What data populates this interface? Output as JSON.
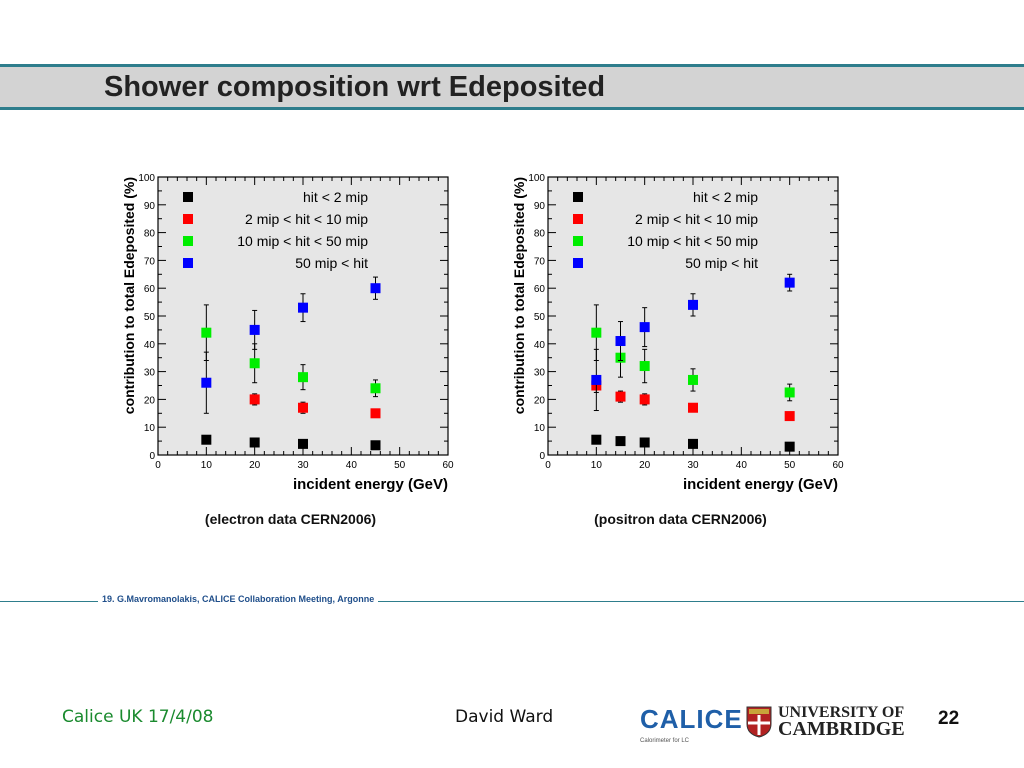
{
  "slide": {
    "title": "Shower composition wrt Edeposited",
    "credit": "19. G.Mavromanolakis, CALICE Collaboration Meeting, Argonne",
    "footer_left": "Calice UK 17/4/08",
    "footer_center": "David Ward",
    "page_number": "22",
    "calice_logo_text": "CALICE",
    "calice_logo_sub": "Calorimeter for LC",
    "university_line1": "UNIVERSITY OF",
    "university_line2": "CAMBRIDGE"
  },
  "colors": {
    "title_rule": "#2e7d8c",
    "series": [
      "#000000",
      "#ff0000",
      "#00ee00",
      "#0000ff"
    ]
  },
  "chart_data": [
    {
      "type": "scatter",
      "caption": "(electron data CERN2006)",
      "xlabel": "incident energy (GeV)",
      "ylabel": "contribution to total Edeposited (%)",
      "xlim": [
        0,
        60
      ],
      "ylim": [
        0,
        100
      ],
      "xticks": [
        0,
        10,
        20,
        30,
        40,
        50,
        60
      ],
      "yticks": [
        0,
        10,
        20,
        30,
        40,
        50,
        60,
        70,
        80,
        90,
        100
      ],
      "legend_position": "top-left",
      "series": [
        {
          "name": "hit <   2 mip",
          "x": [
            10,
            20,
            30,
            45
          ],
          "y": [
            5.5,
            4.5,
            4,
            3.5
          ],
          "err": [
            1,
            1,
            1,
            1
          ]
        },
        {
          "name": "2 mip < hit < 10 mip",
          "x": [
            20,
            30,
            45
          ],
          "y": [
            20,
            17,
            15
          ],
          "err": [
            2,
            2,
            1
          ]
        },
        {
          "name": "10 mip < hit < 50 mip",
          "x": [
            10,
            20,
            30,
            45
          ],
          "y": [
            44,
            33,
            28,
            24
          ],
          "err": [
            10,
            7,
            4.5,
            3
          ]
        },
        {
          "name": "50 mip < hit",
          "x": [
            10,
            20,
            30,
            45
          ],
          "y": [
            26,
            45,
            53,
            60
          ],
          "err": [
            11,
            7,
            5,
            4
          ]
        }
      ]
    },
    {
      "type": "scatter",
      "caption": "(positron data CERN2006)",
      "xlabel": "incident energy (GeV)",
      "ylabel": "contribution to total Edeposited (%)",
      "xlim": [
        0,
        60
      ],
      "ylim": [
        0,
        100
      ],
      "xticks": [
        0,
        10,
        20,
        30,
        40,
        50,
        60
      ],
      "yticks": [
        0,
        10,
        20,
        30,
        40,
        50,
        60,
        70,
        80,
        90,
        100
      ],
      "legend_position": "top-left",
      "series": [
        {
          "name": "hit <   2 mip",
          "x": [
            10,
            15,
            20,
            30,
            50
          ],
          "y": [
            5.5,
            5,
            4.5,
            4,
            3
          ],
          "err": [
            1,
            1,
            1,
            1,
            1
          ]
        },
        {
          "name": "2 mip < hit < 10 mip",
          "x": [
            10,
            15,
            20,
            30,
            50
          ],
          "y": [
            25,
            21,
            20,
            17,
            14
          ],
          "err": [
            2.5,
            2,
            2,
            1,
            1
          ]
        },
        {
          "name": "10 mip < hit < 50 mip",
          "x": [
            10,
            15,
            20,
            30,
            50
          ],
          "y": [
            44,
            35,
            32,
            27,
            22.5
          ],
          "err": [
            10,
            7,
            6,
            4,
            3
          ]
        },
        {
          "name": "50 mip < hit",
          "x": [
            10,
            15,
            20,
            30,
            50
          ],
          "y": [
            27,
            41,
            46,
            54,
            62
          ],
          "err": [
            11,
            7,
            7,
            4,
            3
          ]
        }
      ]
    }
  ]
}
